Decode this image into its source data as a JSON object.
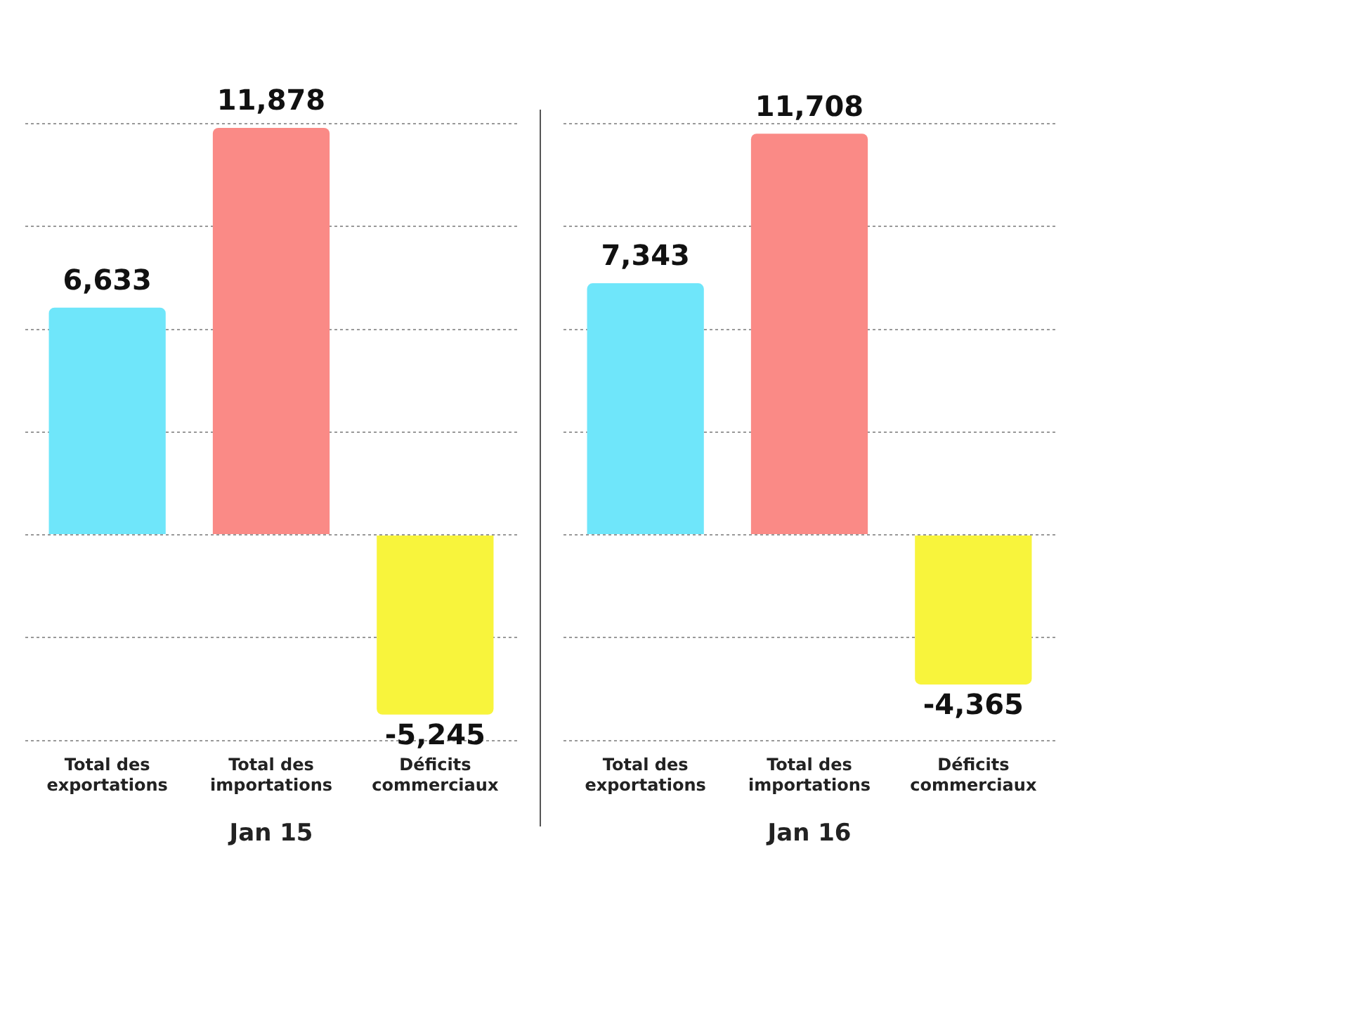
{
  "chart_data": [
    {
      "type": "bar",
      "xlabel": "Jan 15",
      "categories": [
        "Total des exportations",
        "Total des importations",
        "Déficits commerciaux"
      ],
      "values": [
        6633,
        11878,
        -5245
      ],
      "value_labels": [
        "6,633",
        "11,878",
        "-5,245"
      ],
      "colors": [
        "#6fe6fa",
        "#fa8a86",
        "#f8f43c"
      ],
      "ylim": [
        -6000,
        12000
      ],
      "yticks": [
        {
          "value": -6000,
          "label": null
        },
        {
          "value": -3000,
          "label": null
        },
        {
          "value": 0,
          "label": null
        },
        {
          "value": 3000,
          "label": null
        },
        {
          "value": 6000,
          "label": null
        },
        {
          "value": 9000,
          "label": null
        },
        {
          "value": 12000,
          "label": null
        }
      ],
      "grid": "y",
      "tick_labels": "x"
    },
    {
      "type": "bar",
      "xlabel": "Jan 16",
      "categories": [
        "Total des exportations",
        "Total des importations",
        "Déficits commerciaux"
      ],
      "values": [
        7343,
        11708,
        -4365
      ],
      "value_labels": [
        "7,343",
        "11,708",
        "-4,365"
      ],
      "colors": [
        "#6fe6fa",
        "#fa8a86",
        "#f8f43c"
      ],
      "ylim": [
        -6000,
        12000
      ],
      "yticks": [
        {
          "value": -6000,
          "label": null
        },
        {
          "value": -3000,
          "label": null
        },
        {
          "value": 0,
          "label": null
        },
        {
          "value": 3000,
          "label": null
        },
        {
          "value": 6000,
          "label": null
        },
        {
          "value": 9000,
          "label": null
        },
        {
          "value": 12000,
          "label": null
        }
      ],
      "grid": "y",
      "tick_labels": "x"
    }
  ]
}
